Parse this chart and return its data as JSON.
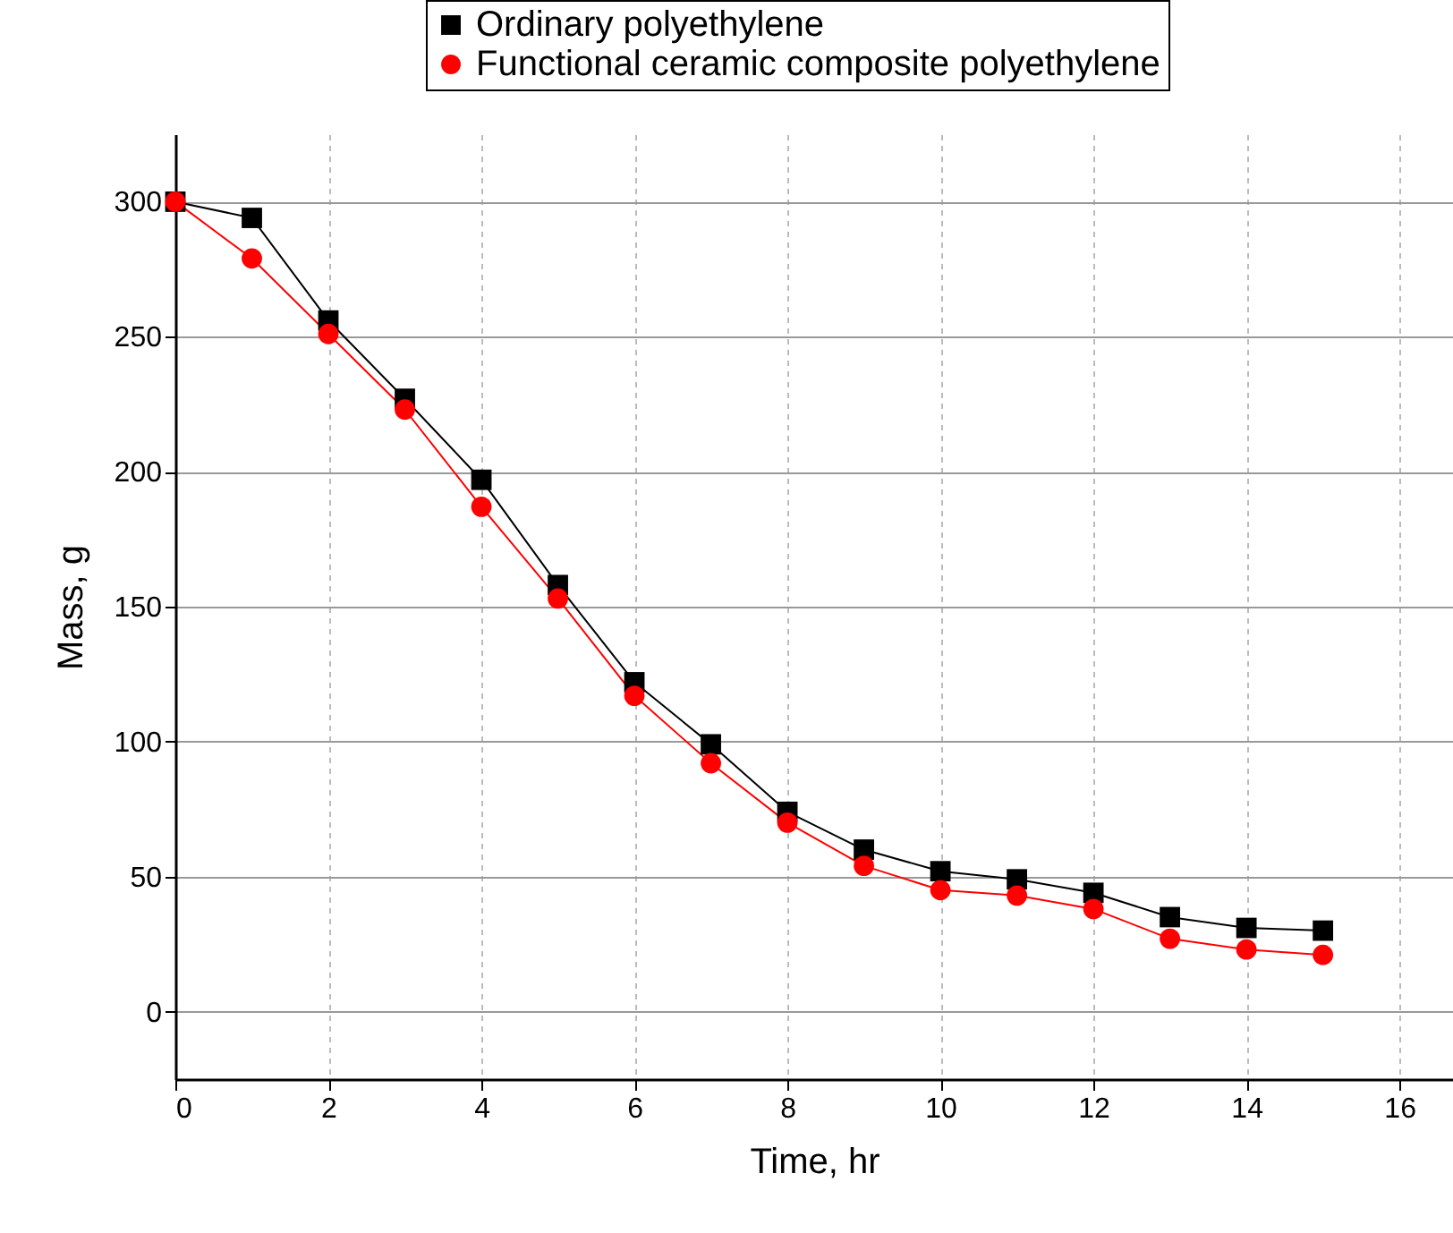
{
  "chart_data": {
    "type": "line",
    "xlabel": "Time, hr",
    "ylabel": "Mass, g",
    "x": [
      0,
      1,
      2,
      3,
      4,
      5,
      6,
      7,
      8,
      9,
      10,
      11,
      12,
      13,
      14,
      15
    ],
    "series": [
      {
        "name": "Ordinary polyethylene",
        "color": "#000000",
        "marker": "square",
        "values": [
          300,
          294,
          256,
          227,
          197,
          158,
          122,
          99,
          74,
          60,
          52,
          49,
          44,
          35,
          31,
          30
        ]
      },
      {
        "name": "Functional ceramic composite polyethylene",
        "color": "#ff0000",
        "marker": "circle",
        "values": [
          300,
          279,
          251,
          223,
          187,
          153,
          117,
          92,
          70,
          54,
          45,
          43,
          38,
          27,
          23,
          21
        ]
      }
    ],
    "xlim": [
      0,
      16.7
    ],
    "xticks": [
      0,
      2,
      4,
      6,
      8,
      10,
      12,
      14,
      16
    ],
    "ylim": [
      -25,
      325
    ],
    "yticks": [
      0,
      50,
      100,
      150,
      200,
      250,
      300
    ],
    "grid": true,
    "legend": "top",
    "line_style": "solid"
  }
}
